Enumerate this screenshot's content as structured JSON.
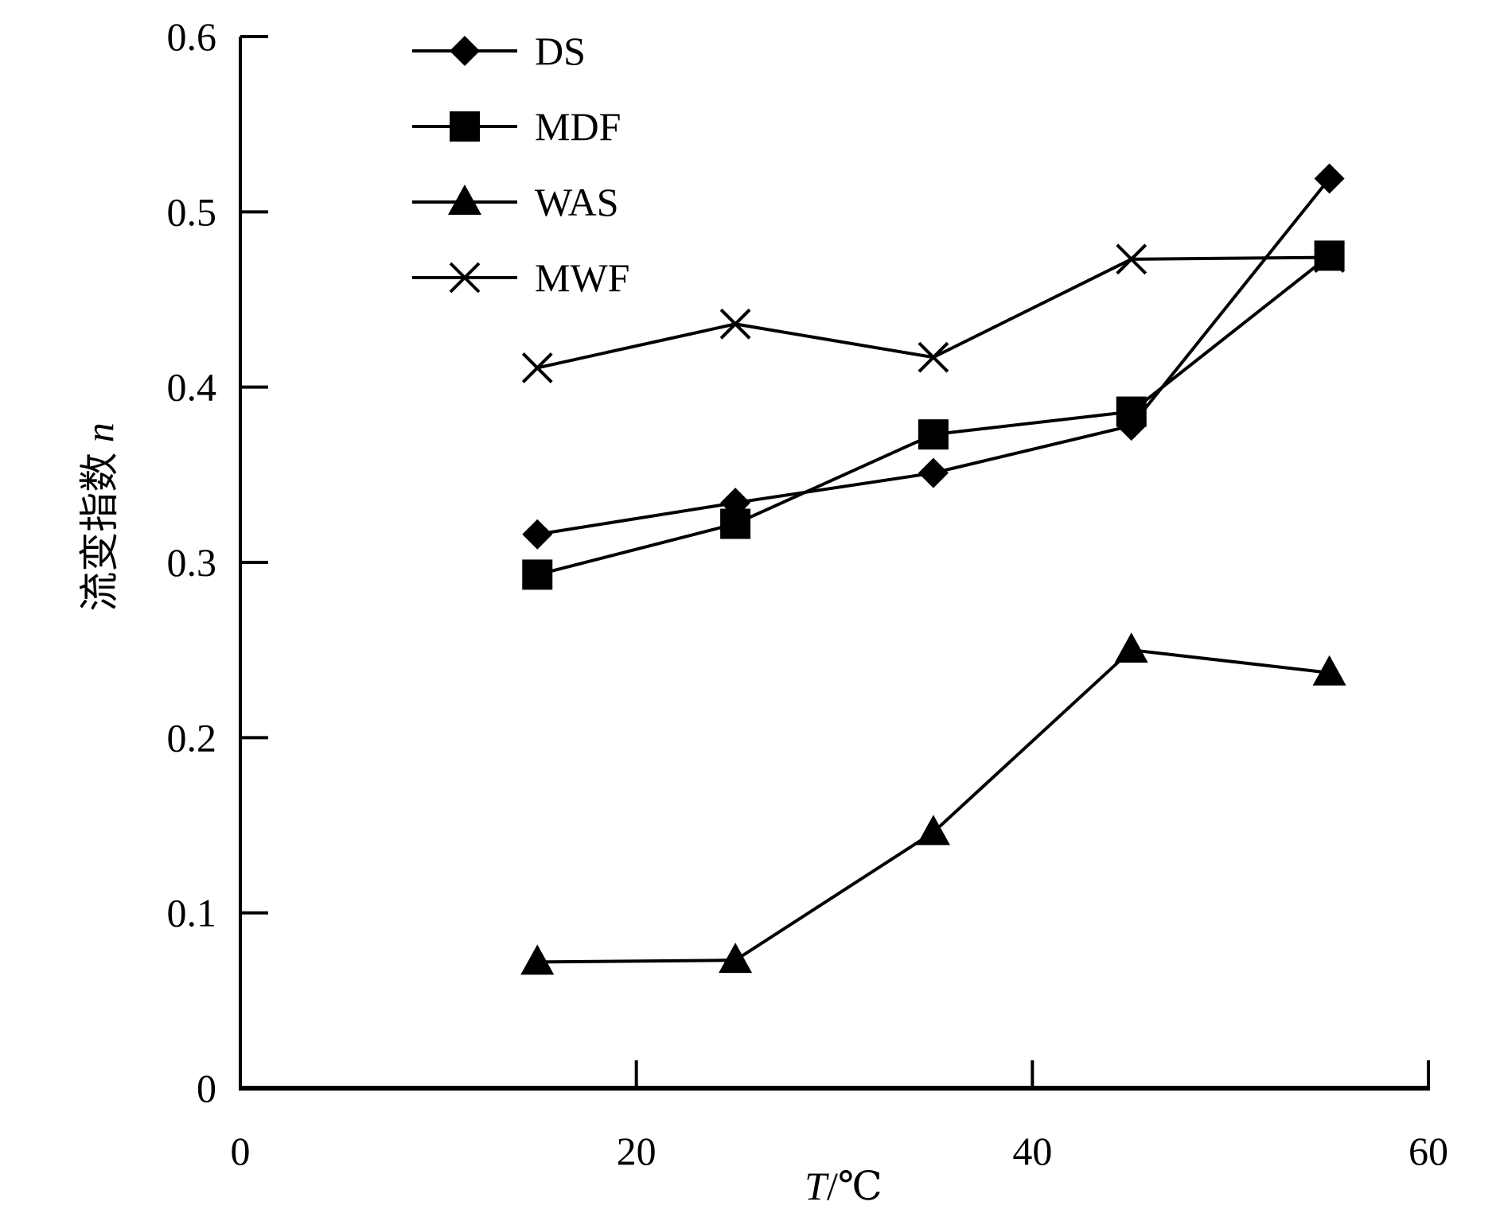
{
  "chart_data": {
    "type": "line",
    "title": "",
    "xlabel": "T/℃",
    "xlabel_italic_part": "T",
    "xlabel_unit_part": "/℃",
    "ylabel": "流变指数 n",
    "ylabel_text_part": "流变指数 ",
    "ylabel_italic_part": "n",
    "xlim": [
      0,
      60
    ],
    "ylim": [
      0,
      0.6
    ],
    "xticks": [
      "0",
      "20",
      "40",
      "60"
    ],
    "yticks": [
      "0",
      "0.1",
      "0.2",
      "0.3",
      "0.4",
      "0.5",
      "0.6"
    ],
    "grid": false,
    "legend_position": "top-left",
    "x": [
      15,
      25,
      35,
      45,
      55
    ],
    "series": [
      {
        "name": "DS",
        "marker": "diamond",
        "values": [
          0.316,
          0.334,
          0.351,
          0.378,
          0.519
        ]
      },
      {
        "name": "MDF",
        "marker": "square",
        "values": [
          0.293,
          0.322,
          0.373,
          0.386,
          0.475
        ]
      },
      {
        "name": "WAS",
        "marker": "triangle",
        "values": [
          0.072,
          0.073,
          0.146,
          0.25,
          0.237
        ]
      },
      {
        "name": "MWF",
        "marker": "x",
        "values": [
          0.411,
          0.436,
          0.417,
          0.473,
          0.474
        ]
      }
    ],
    "color": "#000000"
  }
}
